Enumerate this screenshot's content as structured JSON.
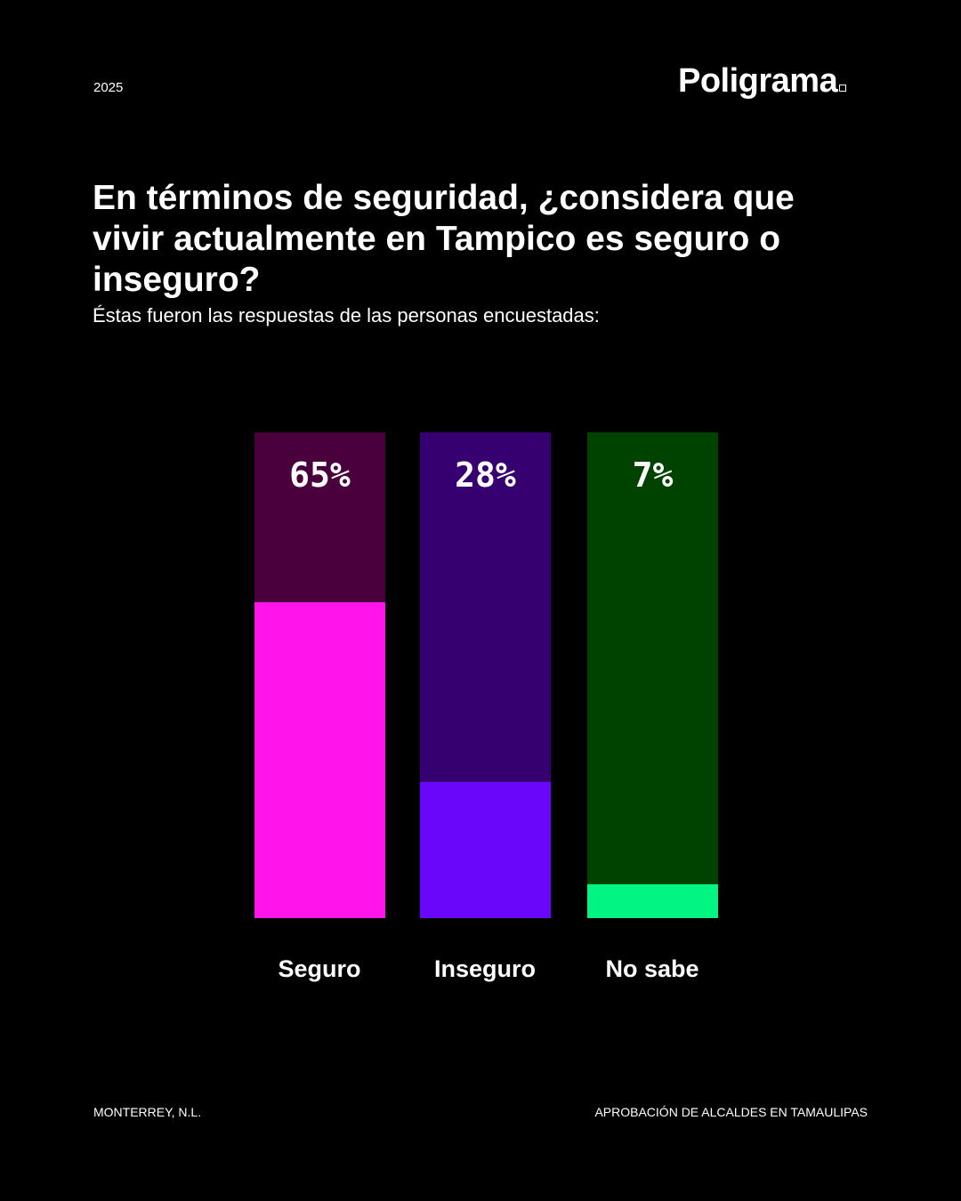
{
  "header": {
    "year": "2025",
    "logo": "Poligrama"
  },
  "title": "En términos de seguridad, ¿considera que vivir actualmente en Tampico es seguro o inseguro?",
  "subtitle": "Éstas fueron las respuestas de las personas encuestadas:",
  "footer": {
    "left": "MONTERREY, N.L.",
    "right": "APROBACIÓN DE ALCALDES EN TAMAULIPAS"
  },
  "chart_data": {
    "type": "bar",
    "categories": [
      "Seguro",
      "Inseguro",
      "No sabe"
    ],
    "values": [
      65,
      28,
      7
    ],
    "labels": [
      "65%",
      "28%",
      "7%"
    ],
    "ylim": [
      0,
      100
    ],
    "colors": [
      "#ff14ec",
      "#6a06fa",
      "#00f582"
    ],
    "track_colors": [
      "#4a003d",
      "#360070",
      "#004200"
    ]
  }
}
